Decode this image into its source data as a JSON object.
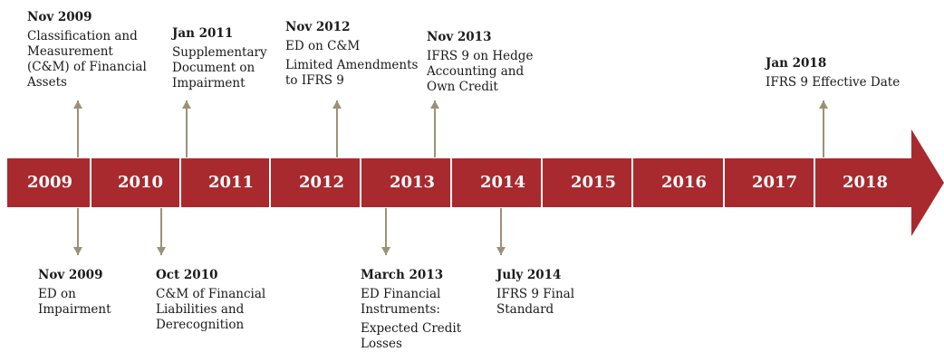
{
  "colors": {
    "band": "#A82A2E",
    "divider": "#ffffff",
    "connector": "#9B9276",
    "text": "#1a1a1a"
  },
  "years": [
    "2009",
    "2010",
    "2011",
    "2012",
    "2013",
    "2014",
    "2015",
    "2016",
    "2017",
    "2018"
  ],
  "events_above": [
    {
      "date": "Nov 2009",
      "lines": [
        "Classification and",
        "Measurement",
        "(C&M) of Financial",
        "Assets"
      ]
    },
    {
      "date": "Jan 2011",
      "lines": [
        "Supplementary",
        "Document on",
        "Impairment"
      ]
    },
    {
      "date": "Nov 2012",
      "lines": [
        "ED on C&M",
        "Limited Amendments",
        "to IFRS 9"
      ]
    },
    {
      "date": "Nov 2013",
      "lines": [
        "IFRS 9 on Hedge",
        "Accounting and",
        "Own Credit"
      ]
    },
    {
      "date": "Jan 2018",
      "lines": [
        "IFRS 9 Effective Date"
      ]
    }
  ],
  "events_below": [
    {
      "date": "Nov 2009",
      "lines": [
        "ED on",
        "Impairment"
      ]
    },
    {
      "date": "Oct 2010",
      "lines": [
        "C&M of Financial",
        "Liabilities and",
        "Derecognition"
      ]
    },
    {
      "date": "March 2013",
      "lines": [
        "ED Financial",
        "Instruments:",
        "Expected Credit",
        "Losses"
      ]
    },
    {
      "date": "July 2014",
      "lines": [
        "IFRS 9 Final",
        "Standard"
      ]
    }
  ]
}
